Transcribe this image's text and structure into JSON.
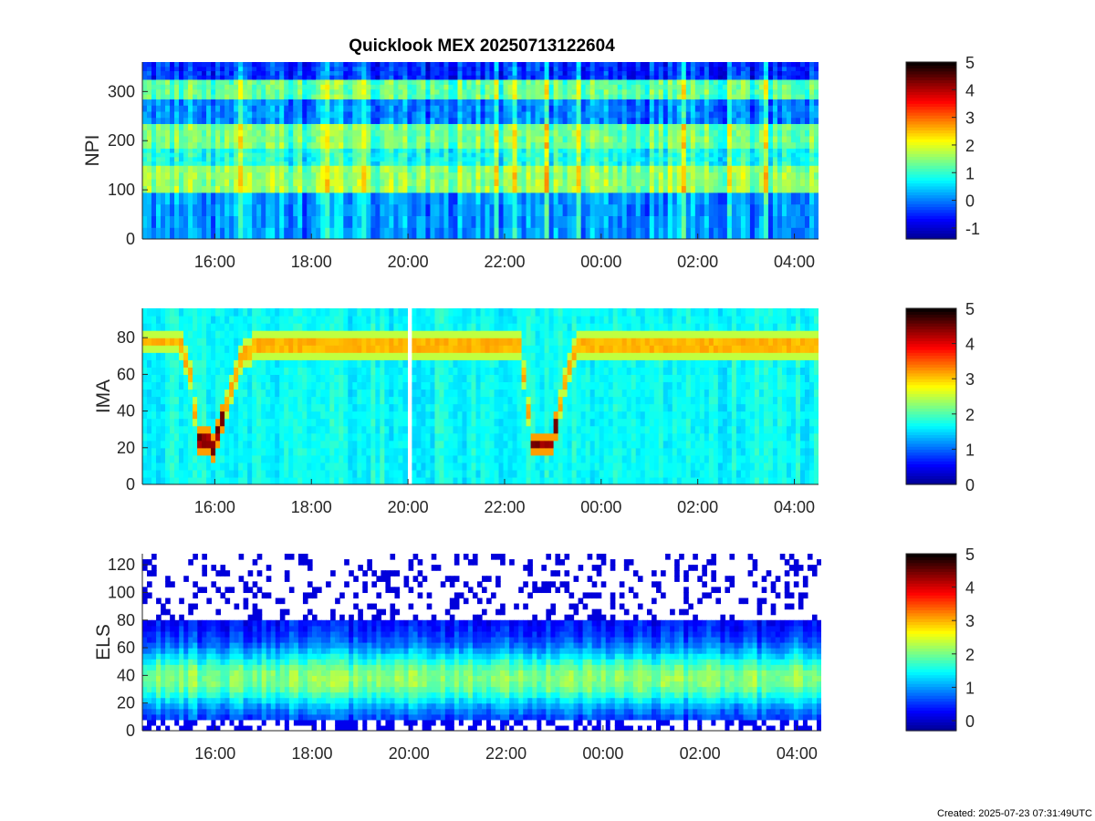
{
  "title": "Quicklook MEX 20250713122604",
  "footer": "Created: 2025-07-23 07:31:49UTC",
  "colormap": [
    "#00008f",
    "#0000ff",
    "#0080ff",
    "#00ffff",
    "#80ff80",
    "#ffff00",
    "#ff8000",
    "#ff0000",
    "#800000",
    "#000000"
  ],
  "chart_data": [
    {
      "type": "heatmap",
      "name": "NPI",
      "ylabel": "NPI",
      "x_range": [
        "14:30",
        "04:30"
      ],
      "xticks": [
        "16:00",
        "18:00",
        "20:00",
        "22:00",
        "00:00",
        "02:00",
        "04:00"
      ],
      "ylim": [
        0,
        360
      ],
      "yticks": [
        0,
        100,
        200,
        300
      ],
      "colorbar": {
        "clim": [
          -1.4,
          5
        ],
        "ticks": [
          -1,
          0,
          1,
          2,
          3,
          4,
          5
        ]
      },
      "bands": [
        {
          "y": [
            0,
            95
          ],
          "level": 0.1
        },
        {
          "y": [
            95,
            150
          ],
          "level": 1.5
        },
        {
          "y": [
            150,
            185
          ],
          "level": 0.8
        },
        {
          "y": [
            185,
            235
          ],
          "level": 1.3
        },
        {
          "y": [
            235,
            285
          ],
          "level": 0.0
        },
        {
          "y": [
            285,
            325
          ],
          "level": 1.2
        },
        {
          "y": [
            325,
            360
          ],
          "level": -0.5
        }
      ]
    },
    {
      "type": "heatmap",
      "name": "IMA",
      "ylabel": "IMA",
      "x_range": [
        "14:30",
        "04:30"
      ],
      "xticks": [
        "16:00",
        "18:00",
        "20:00",
        "22:00",
        "00:00",
        "02:00",
        "04:00"
      ],
      "ylim": [
        0,
        96
      ],
      "yticks": [
        0,
        20,
        40,
        60,
        80
      ],
      "colorbar": {
        "clim": [
          0,
          5
        ],
        "ticks": [
          0,
          1,
          2,
          3,
          4,
          5
        ]
      },
      "background_level": 1.7,
      "data_gap": [
        "20:00",
        "20:05"
      ],
      "trace": [
        [
          "14:30",
          78
        ],
        [
          "15:15",
          78
        ],
        [
          "15:30",
          60
        ],
        [
          "15:40",
          25
        ],
        [
          "16:00",
          21
        ],
        [
          "16:15",
          45
        ],
        [
          "16:35",
          72
        ],
        [
          "17:00",
          76
        ],
        [
          "20:00",
          76
        ],
        [
          "22:00",
          76
        ],
        [
          "22:20",
          74
        ],
        [
          "22:35",
          22
        ],
        [
          "23:00",
          22
        ],
        [
          "23:15",
          55
        ],
        [
          "23:30",
          76
        ],
        [
          "02:00",
          76
        ],
        [
          "04:30",
          76
        ]
      ]
    },
    {
      "type": "heatmap",
      "name": "ELS",
      "ylabel": "ELS",
      "x_range": [
        "14:30",
        "04:30"
      ],
      "xticks": [
        "16:00",
        "18:00",
        "20:00",
        "22:00",
        "00:00",
        "02:00",
        "04:00"
      ],
      "ylim": [
        0,
        128
      ],
      "yticks": [
        0,
        20,
        40,
        60,
        80,
        100,
        120
      ],
      "colorbar": {
        "clim": [
          -0.3,
          5
        ],
        "ticks": [
          0,
          1,
          2,
          3,
          4,
          5
        ]
      },
      "peak_y": 38,
      "top_of_signal_y": 78
    }
  ]
}
